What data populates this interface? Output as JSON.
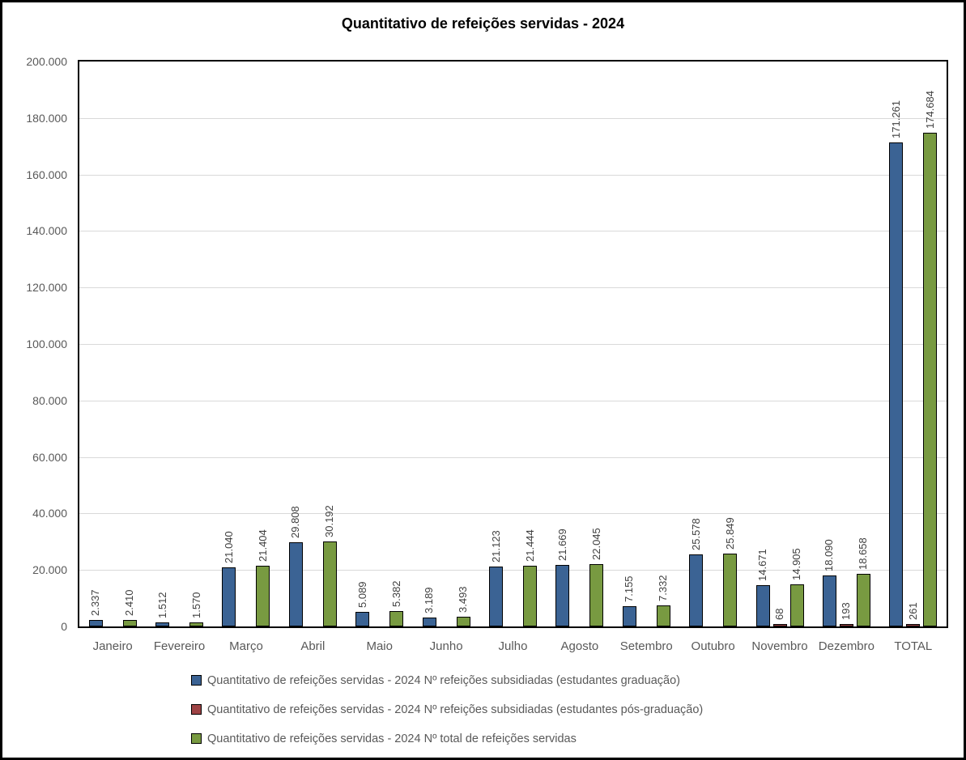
{
  "title": "Quantitativo de refeições servidas - 2024",
  "chart_data": {
    "type": "bar",
    "title": "Quantitativo de refeições servidas - 2024",
    "categories": [
      "Janeiro",
      "Fevereiro",
      "Março",
      "Abril",
      "Maio",
      "Junho",
      "Julho",
      "Agosto",
      "Setembro",
      "Outubro",
      "Novembro",
      "Dezembro",
      "TOTAL"
    ],
    "series": [
      {
        "name": "Quantitativo de refeições servidas - 2024 Nº refeições subsidiadas (estudantes graduação)",
        "color": "#3B6394",
        "values": [
          2337,
          1512,
          21040,
          29808,
          5089,
          3189,
          21123,
          21669,
          7155,
          25578,
          14671,
          18090,
          171261
        ],
        "labels": [
          "2.337",
          "1.512",
          "21.040",
          "29.808",
          "5.089",
          "3.189",
          "21.123",
          "21.669",
          "7.155",
          "25.578",
          "14.671",
          "18.090",
          "171.261"
        ]
      },
      {
        "name": "Quantitativo de refeições servidas - 2024 Nº refeições subsidiadas (estudantes pós-graduação)",
        "color": "#9E4345",
        "values": [
          0,
          0,
          0,
          0,
          0,
          0,
          0,
          0,
          0,
          0,
          68,
          193,
          261
        ],
        "labels": [
          "",
          "",
          "",
          "",
          "",
          "",
          "",
          "",
          "",
          "",
          "68",
          "193",
          "261"
        ]
      },
      {
        "name": "Quantitativo de refeições servidas - 2024 Nº total de refeições servidas",
        "color": "#789A41",
        "values": [
          2410,
          1570,
          21404,
          30192,
          5382,
          3493,
          21444,
          22045,
          7332,
          25849,
          14905,
          18658,
          174684
        ],
        "labels": [
          "2.410",
          "1.570",
          "21.404",
          "30.192",
          "5.382",
          "3.493",
          "21.444",
          "22.045",
          "7.332",
          "25.849",
          "14.905",
          "18.658",
          "174.684"
        ]
      }
    ],
    "ylim": [
      0,
      200000
    ],
    "ytick_step": 20000,
    "ytick_labels": [
      "0",
      "20.000",
      "40.000",
      "60.000",
      "80.000",
      "100.000",
      "120.000",
      "140.000",
      "160.000",
      "180.000",
      "200.000"
    ],
    "grid": true,
    "legend_position": "bottom",
    "bar_border_color": "#000000",
    "gridline_color": "#D9D9D9",
    "axis_text_color": "#595959",
    "data_label_color": "#3F3F3F"
  }
}
